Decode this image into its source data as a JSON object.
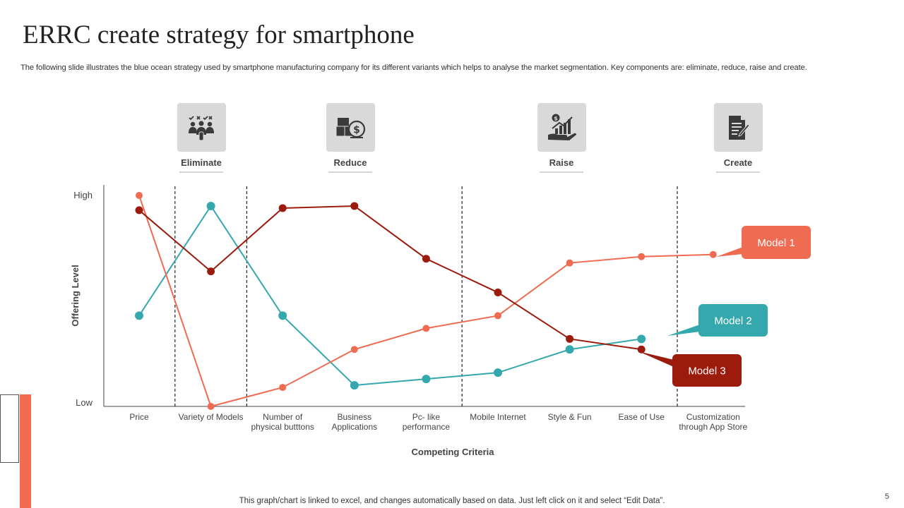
{
  "title": "ERRC create strategy for smartphone",
  "subtitle": "The following slide illustrates the blue ocean strategy used by smartphone manufacturing company for its different variants which helps to analyse the market segmentation. Key components are: eliminate, reduce, raise and create.",
  "categories": [
    {
      "label": "Eliminate",
      "icon": "team-vote-icon"
    },
    {
      "label": "Reduce",
      "icon": "boxes-dollar-icon"
    },
    {
      "label": "Raise",
      "icon": "hand-growth-chart-icon"
    },
    {
      "label": "Create",
      "icon": "document-pen-icon"
    }
  ],
  "colors": {
    "model1": "#ef6c53",
    "model2": "#35a8ad",
    "model3": "#9b1c0c",
    "icon": "#3a3a3a",
    "box": "#d9d9d9"
  },
  "chart_data": {
    "type": "line",
    "xlabel": "Competing Criteria",
    "ylabel": "Offering Level",
    "ytick_labels": {
      "high": "High",
      "low": "Low"
    },
    "ylim": [
      0,
      100
    ],
    "categories": [
      "Price",
      "Variety of Models",
      "Number of physical butttons",
      "Business Applications",
      "Pc- like performance",
      "Mobile Internet",
      "Style & Fun",
      "Ease of Use",
      "Customization through App Store"
    ],
    "separators_after_index": [
      0,
      1,
      4,
      7
    ],
    "series": [
      {
        "name": "Model 1",
        "values": [
          100,
          0,
          9,
          27,
          37,
          43,
          68,
          71,
          72
        ],
        "color": "#ef6c53"
      },
      {
        "name": "Model 2",
        "values": [
          43,
          95,
          43,
          10,
          13,
          16,
          27,
          32,
          null
        ],
        "color": "#35a8ad"
      },
      {
        "name": "Model 3",
        "values": [
          93,
          64,
          94,
          95,
          70,
          54,
          32,
          27,
          null
        ],
        "color": "#9b1c0c"
      }
    ]
  },
  "footer": "This graph/chart is linked to excel,  and changes automatically based on data. Just left click on it and select “Edit Data”.",
  "page_number": "5"
}
